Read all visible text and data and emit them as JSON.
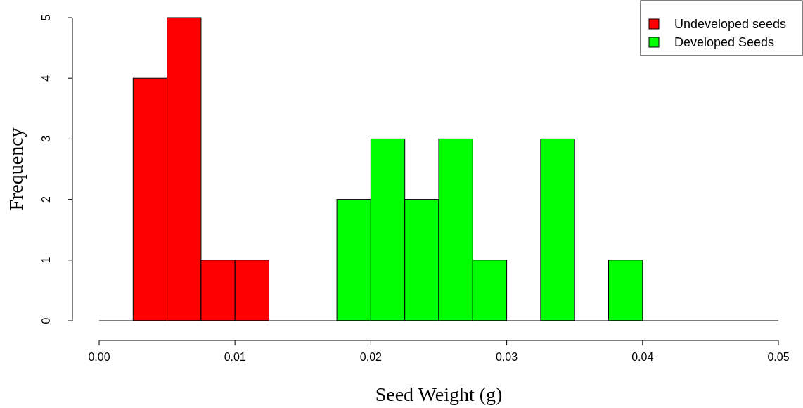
{
  "chart_data": {
    "type": "histogram",
    "xlabel": "Seed Weight (g)",
    "ylabel": "Frequency",
    "bins": [
      0.0025,
      0.005,
      0.0075,
      0.01,
      0.0125,
      0.015,
      0.0175,
      0.02,
      0.0225,
      0.025,
      0.0275,
      0.03,
      0.0325,
      0.035,
      0.0375,
      0.04
    ],
    "series": [
      {
        "name": "Undeveloped seeds",
        "color": "#ff0000",
        "values": [
          4,
          5,
          1,
          1,
          null,
          null,
          null,
          null,
          null,
          null,
          null,
          null,
          null,
          null,
          null
        ]
      },
      {
        "name": "Developed Seeds",
        "color": "#00ff00",
        "values": [
          null,
          null,
          null,
          null,
          null,
          null,
          2,
          3,
          2,
          3,
          1,
          0,
          3,
          0,
          1
        ]
      }
    ],
    "xlim": [
      0,
      0.05
    ],
    "xticks": [
      {
        "value": 0,
        "label": "0.00"
      },
      0.01,
      0.02,
      0.03,
      0.04,
      0.05
    ],
    "ylim": [
      0,
      5
    ],
    "yticks": [
      0,
      1,
      2,
      3,
      4,
      5
    ],
    "ref_lines": [
      {
        "axis": "y",
        "value": 0
      }
    ],
    "legend": "top right"
  }
}
